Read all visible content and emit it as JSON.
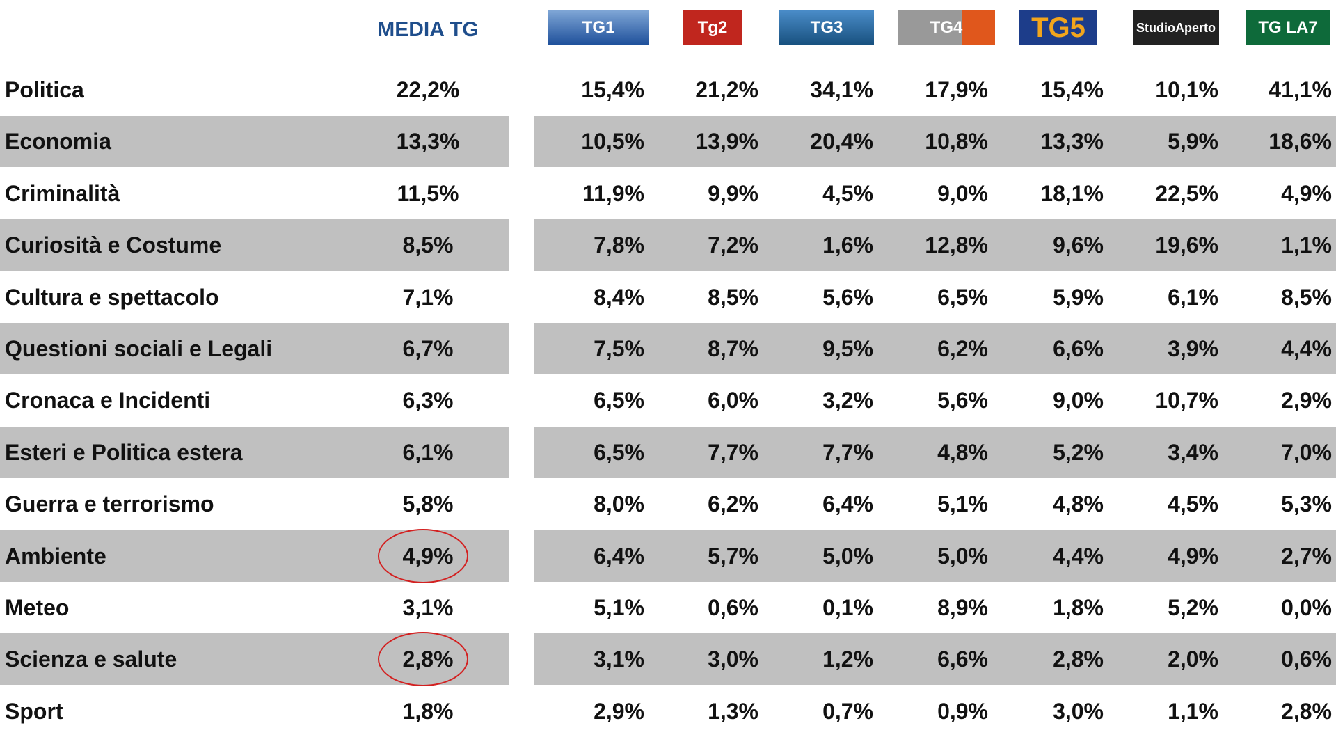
{
  "header": {
    "columns": [
      "MEDIA TG",
      "TG1",
      "Tg2",
      "TG3",
      "TG4",
      "TG5",
      "StudioAperto",
      "TG LA7"
    ]
  },
  "table": {
    "rows": [
      {
        "label": "Politica",
        "values": [
          "22,2%",
          "15,4%",
          "21,2%",
          "34,1%",
          "17,9%",
          "15,4%",
          "10,1%",
          "41,1%"
        ]
      },
      {
        "label": "Economia",
        "values": [
          "13,3%",
          "10,5%",
          "13,9%",
          "20,4%",
          "10,8%",
          "13,3%",
          "5,9%",
          "18,6%"
        ]
      },
      {
        "label": "Criminalità",
        "values": [
          "11,5%",
          "11,9%",
          "9,9%",
          "4,5%",
          "9,0%",
          "18,1%",
          "22,5%",
          "4,9%"
        ]
      },
      {
        "label": "Curiosità e Costume",
        "values": [
          "8,5%",
          "7,8%",
          "7,2%",
          "1,6%",
          "12,8%",
          "9,6%",
          "19,6%",
          "1,1%"
        ]
      },
      {
        "label": "Cultura e spettacolo",
        "values": [
          "7,1%",
          "8,4%",
          "8,5%",
          "5,6%",
          "6,5%",
          "5,9%",
          "6,1%",
          "8,5%"
        ]
      },
      {
        "label": "Questioni sociali e Legali",
        "values": [
          "6,7%",
          "7,5%",
          "8,7%",
          "9,5%",
          "6,2%",
          "6,6%",
          "3,9%",
          "4,4%"
        ]
      },
      {
        "label": "Cronaca e Incidenti",
        "values": [
          "6,3%",
          "6,5%",
          "6,0%",
          "3,2%",
          "5,6%",
          "9,0%",
          "10,7%",
          "2,9%"
        ]
      },
      {
        "label": "Esteri e Politica estera",
        "values": [
          "6,1%",
          "6,5%",
          "7,7%",
          "7,7%",
          "4,8%",
          "5,2%",
          "3,4%",
          "7,0%"
        ]
      },
      {
        "label": "Guerra e terrorismo",
        "values": [
          "5,8%",
          "8,0%",
          "6,2%",
          "6,4%",
          "5,1%",
          "4,8%",
          "4,5%",
          "5,3%"
        ]
      },
      {
        "label": "Ambiente",
        "values": [
          "4,9%",
          "6,4%",
          "5,7%",
          "5,0%",
          "5,0%",
          "4,4%",
          "4,9%",
          "2,7%"
        ]
      },
      {
        "label": "Meteo",
        "values": [
          "3,1%",
          "5,1%",
          "0,6%",
          "0,1%",
          "8,9%",
          "1,8%",
          "5,2%",
          "0,0%"
        ]
      },
      {
        "label": "Scienza e salute",
        "values": [
          "2,8%",
          "3,1%",
          "3,0%",
          "1,2%",
          "6,6%",
          "2,8%",
          "2,0%",
          "0,6%"
        ]
      },
      {
        "label": "Sport",
        "values": [
          "1,8%",
          "2,9%",
          "1,3%",
          "0,7%",
          "0,9%",
          "3,0%",
          "1,1%",
          "2,8%"
        ]
      }
    ]
  }
}
